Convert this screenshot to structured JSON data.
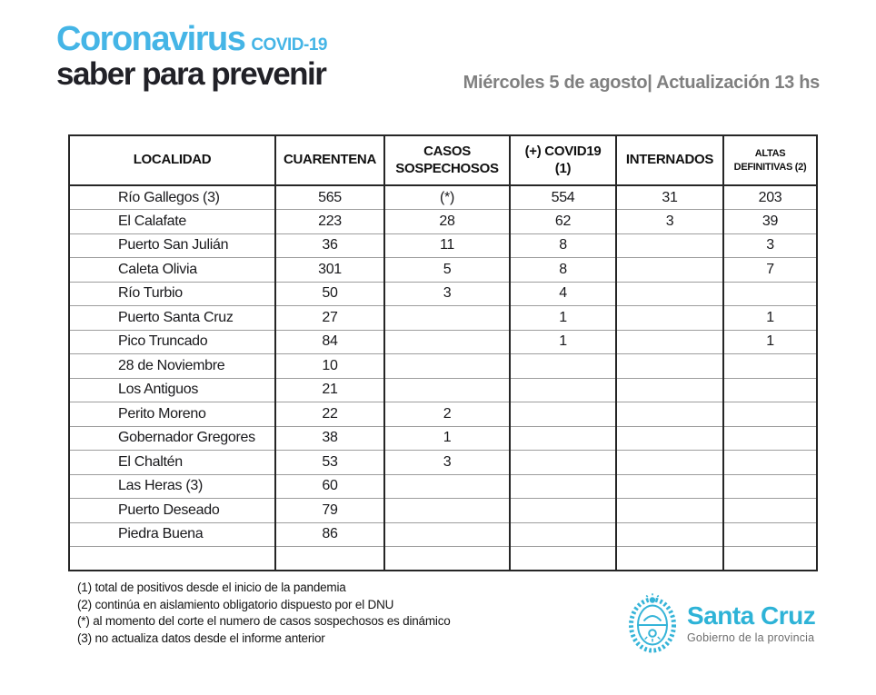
{
  "brand": {
    "title": "Coronavirus",
    "subtitle_inline": "COVID-19",
    "tagline": "saber para prevenir"
  },
  "header": {
    "date_line": "Miércoles 5 de agosto| Actualización 13 hs"
  },
  "table": {
    "columns": [
      "LOCALIDAD",
      "CUARENTENA",
      "CASOS SOSPECHOSOS",
      "(+) COVID19 (1)",
      "INTERNADOS",
      "ALTAS DEFINITIVAS (2)"
    ],
    "rows": [
      [
        "Río Gallegos (3)",
        "565",
        "(*)",
        "554",
        "31",
        "203"
      ],
      [
        "El Calafate",
        "223",
        "28",
        "62",
        "3",
        "39"
      ],
      [
        "Puerto San Julián",
        "36",
        "11",
        "8",
        "",
        "3"
      ],
      [
        "Caleta Olivia",
        "301",
        "5",
        "8",
        "",
        "7"
      ],
      [
        "Río Turbio",
        "50",
        "3",
        "4",
        "",
        ""
      ],
      [
        "Puerto Santa Cruz",
        "27",
        "",
        "1",
        "",
        "1"
      ],
      [
        "Pico Truncado",
        "84",
        "",
        "1",
        "",
        "1"
      ],
      [
        "28 de Noviembre",
        "10",
        "",
        "",
        "",
        ""
      ],
      [
        "Los Antiguos",
        "21",
        "",
        "",
        "",
        ""
      ],
      [
        "Perito Moreno",
        "22",
        "2",
        "",
        "",
        ""
      ],
      [
        "Gobernador Gregores",
        "38",
        "1",
        "",
        "",
        ""
      ],
      [
        "El Chaltén",
        "53",
        "3",
        "",
        "",
        ""
      ],
      [
        "Las Heras (3)",
        "60",
        "",
        "",
        "",
        ""
      ],
      [
        "Puerto Deseado",
        "79",
        "",
        "",
        "",
        ""
      ],
      [
        "Piedra Buena",
        "86",
        "",
        "",
        "",
        ""
      ],
      [
        "",
        "",
        "",
        "",
        "",
        ""
      ]
    ]
  },
  "footnotes": [
    "(1) total de positivos desde el inicio de la pandemia",
    "(2) continúa en aislamiento obligatorio dispuesto por el DNU",
    "(*) al momento del corte el numero de casos sospechosos  es dinámico",
    "(3) no actualiza datos desde el informe anterior"
  ],
  "footer_logo": {
    "name": "Santa Cruz",
    "subtitle": "Gobierno de la provincia"
  },
  "colors": {
    "brand_cyan": "#45b5e6",
    "tagline_dark": "#212127",
    "date_gray": "#808080",
    "table_border_dark": "#262626",
    "row_line_gray": "#9d9d9d",
    "logo_cyan": "#2eb3d7",
    "logo_sub_gray": "#6e6e6e"
  }
}
